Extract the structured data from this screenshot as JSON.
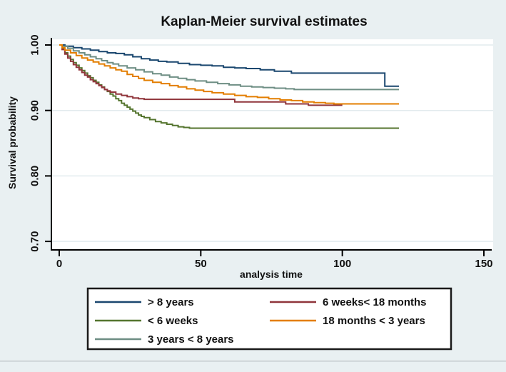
{
  "figure": {
    "background_color": "#e9f0f2",
    "plot_background_color": "#ffffff",
    "grid_color": "#e2ebee",
    "axis_color": "#000000",
    "bottom_rule_color": "#c4cacd"
  },
  "chart_data": {
    "type": "line",
    "subtype": "kaplan-meier-step",
    "title": "Kaplan-Meier survival estimates",
    "title_color": "#1f4060",
    "xlabel": "analysis time",
    "ylabel": "Survival probability",
    "xlim": [
      0,
      150
    ],
    "ylim": [
      0.7,
      1.0
    ],
    "grid": true,
    "legend_position": "bottom",
    "x_ticks": [
      {
        "value": 0,
        "label": "0"
      },
      {
        "value": 50,
        "label": "50"
      },
      {
        "value": 100,
        "label": "100"
      },
      {
        "value": 150,
        "label": "150"
      }
    ],
    "y_ticks": [
      {
        "value": 1.0,
        "label": "1.00"
      },
      {
        "value": 0.9,
        "label": "0.90"
      },
      {
        "value": 0.8,
        "label": "0.80"
      },
      {
        "value": 0.7,
        "label": "0.70"
      }
    ],
    "series": [
      {
        "name": "> 8 years",
        "color": "#1a476f",
        "points": [
          [
            0,
            1.0
          ],
          [
            2,
            0.998
          ],
          [
            5,
            0.996
          ],
          [
            8,
            0.994
          ],
          [
            11,
            0.992
          ],
          [
            14,
            0.99
          ],
          [
            17,
            0.988
          ],
          [
            20,
            0.987
          ],
          [
            23,
            0.985
          ],
          [
            26,
            0.982
          ],
          [
            29,
            0.979
          ],
          [
            32,
            0.977
          ],
          [
            35,
            0.975
          ],
          [
            38,
            0.974
          ],
          [
            42,
            0.972
          ],
          [
            46,
            0.97
          ],
          [
            50,
            0.969
          ],
          [
            54,
            0.968
          ],
          [
            58,
            0.966
          ],
          [
            62,
            0.965
          ],
          [
            66,
            0.964
          ],
          [
            71,
            0.962
          ],
          [
            76,
            0.96
          ],
          [
            82,
            0.957
          ],
          [
            115,
            0.937
          ],
          [
            120,
            0.937
          ]
        ]
      },
      {
        "name": "< 6 weeks",
        "color": "#55752f",
        "points": [
          [
            0,
            1.0
          ],
          [
            1,
            0.994
          ],
          [
            2,
            0.988
          ],
          [
            3,
            0.983
          ],
          [
            4,
            0.978
          ],
          [
            5,
            0.973
          ],
          [
            6,
            0.969
          ],
          [
            7,
            0.965
          ],
          [
            8,
            0.961
          ],
          [
            9,
            0.957
          ],
          [
            10,
            0.953
          ],
          [
            11,
            0.95
          ],
          [
            12,
            0.946
          ],
          [
            13,
            0.943
          ],
          [
            14,
            0.939
          ],
          [
            15,
            0.936
          ],
          [
            16,
            0.932
          ],
          [
            17,
            0.929
          ],
          [
            18,
            0.925
          ],
          [
            19,
            0.922
          ],
          [
            20,
            0.918
          ],
          [
            21,
            0.915
          ],
          [
            22,
            0.911
          ],
          [
            23,
            0.908
          ],
          [
            24,
            0.905
          ],
          [
            25,
            0.902
          ],
          [
            26,
            0.899
          ],
          [
            27,
            0.896
          ],
          [
            28,
            0.893
          ],
          [
            29,
            0.891
          ],
          [
            30,
            0.889
          ],
          [
            32,
            0.886
          ],
          [
            34,
            0.883
          ],
          [
            36,
            0.881
          ],
          [
            38,
            0.879
          ],
          [
            40,
            0.877
          ],
          [
            42,
            0.875
          ],
          [
            44,
            0.874
          ],
          [
            46,
            0.873
          ],
          [
            120,
            0.873
          ]
        ]
      },
      {
        "name": "3 years < 8 years",
        "color": "#6e8e84",
        "points": [
          [
            0,
            1.0
          ],
          [
            1,
            0.998
          ],
          [
            3,
            0.995
          ],
          [
            5,
            0.991
          ],
          [
            7,
            0.988
          ],
          [
            9,
            0.985
          ],
          [
            11,
            0.982
          ],
          [
            13,
            0.979
          ],
          [
            15,
            0.976
          ],
          [
            17,
            0.973
          ],
          [
            19,
            0.971
          ],
          [
            21,
            0.968
          ],
          [
            24,
            0.965
          ],
          [
            27,
            0.962
          ],
          [
            30,
            0.959
          ],
          [
            33,
            0.956
          ],
          [
            36,
            0.954
          ],
          [
            39,
            0.951
          ],
          [
            42,
            0.949
          ],
          [
            45,
            0.947
          ],
          [
            48,
            0.945
          ],
          [
            52,
            0.943
          ],
          [
            56,
            0.941
          ],
          [
            60,
            0.939
          ],
          [
            64,
            0.937
          ],
          [
            68,
            0.936
          ],
          [
            72,
            0.935
          ],
          [
            76,
            0.934
          ],
          [
            80,
            0.933
          ],
          [
            83,
            0.932
          ],
          [
            120,
            0.932
          ]
        ]
      },
      {
        "name": "6 weeks< 18 months",
        "color": "#90353b",
        "points": [
          [
            0,
            1.0
          ],
          [
            1,
            0.993
          ],
          [
            2,
            0.986
          ],
          [
            3,
            0.98
          ],
          [
            4,
            0.975
          ],
          [
            5,
            0.97
          ],
          [
            6,
            0.966
          ],
          [
            7,
            0.962
          ],
          [
            8,
            0.958
          ],
          [
            9,
            0.954
          ],
          [
            10,
            0.951
          ],
          [
            11,
            0.947
          ],
          [
            12,
            0.944
          ],
          [
            13,
            0.941
          ],
          [
            14,
            0.938
          ],
          [
            15,
            0.935
          ],
          [
            16,
            0.932
          ],
          [
            17,
            0.93
          ],
          [
            18,
            0.928
          ],
          [
            20,
            0.925
          ],
          [
            22,
            0.923
          ],
          [
            24,
            0.921
          ],
          [
            26,
            0.919
          ],
          [
            28,
            0.918
          ],
          [
            30,
            0.917
          ],
          [
            62,
            0.913
          ],
          [
            80,
            0.91
          ],
          [
            88,
            0.908
          ],
          [
            100,
            0.908
          ]
        ]
      },
      {
        "name": "18 months < 3 years",
        "color": "#e37e00",
        "points": [
          [
            0,
            1.0
          ],
          [
            1,
            0.996
          ],
          [
            2,
            0.992
          ],
          [
            4,
            0.988
          ],
          [
            6,
            0.984
          ],
          [
            8,
            0.98
          ],
          [
            10,
            0.977
          ],
          [
            12,
            0.974
          ],
          [
            14,
            0.971
          ],
          [
            16,
            0.968
          ],
          [
            18,
            0.965
          ],
          [
            20,
            0.962
          ],
          [
            22,
            0.96
          ],
          [
            24,
            0.955
          ],
          [
            26,
            0.952
          ],
          [
            28,
            0.949
          ],
          [
            30,
            0.946
          ],
          [
            33,
            0.943
          ],
          [
            36,
            0.941
          ],
          [
            39,
            0.938
          ],
          [
            42,
            0.936
          ],
          [
            45,
            0.933
          ],
          [
            48,
            0.931
          ],
          [
            51,
            0.929
          ],
          [
            54,
            0.927
          ],
          [
            58,
            0.925
          ],
          [
            62,
            0.923
          ],
          [
            66,
            0.921
          ],
          [
            70,
            0.92
          ],
          [
            74,
            0.918
          ],
          [
            78,
            0.916
          ],
          [
            82,
            0.915
          ],
          [
            86,
            0.913
          ],
          [
            90,
            0.912
          ],
          [
            94,
            0.911
          ],
          [
            97,
            0.91
          ],
          [
            120,
            0.91
          ]
        ]
      }
    ],
    "legend": {
      "border_color": "#1a1a1a",
      "background": "#ffffff",
      "columns": [
        [
          0,
          1,
          2
        ],
        [
          3,
          4
        ]
      ]
    }
  }
}
